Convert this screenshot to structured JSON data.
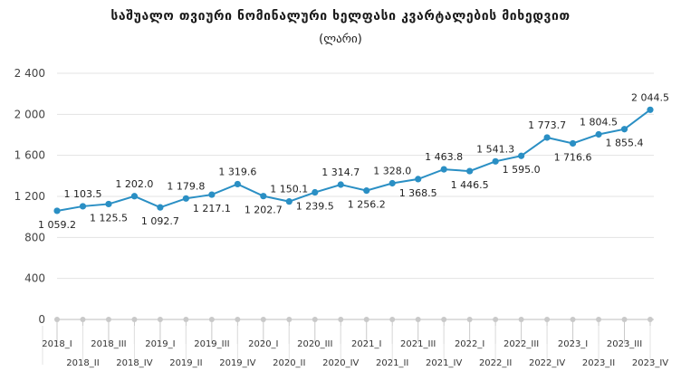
{
  "header": {
    "title": "საშუალო თვიური ნომინალური ხელფასი კვარტალების მიხედვით",
    "subtitle": "(ლარი)"
  },
  "chart_data": {
    "type": "line",
    "title": "საშუალო თვიური ნომინალური ხელფასი კვარტალების მიხედვით",
    "subtitle": "(ლარი)",
    "xlabel": "",
    "ylabel": "",
    "ylim": [
      0,
      2400
    ],
    "yticks": [
      0,
      400,
      800,
      1200,
      1600,
      2000,
      2400
    ],
    "ytick_labels": [
      "0",
      "400",
      "800",
      "1 200",
      "1 600",
      "2 000",
      "2 400"
    ],
    "grid": "horizontal",
    "legend": "none",
    "categories": [
      "2018_I",
      "2018_II",
      "2018_III",
      "2018_IV",
      "2019_I",
      "2019_II",
      "2019_III",
      "2019_IV",
      "2020_I",
      "2020_II",
      "2020_III",
      "2020_IV",
      "2021_I",
      "2021_II",
      "2021_III",
      "2021_IV",
      "2022_I",
      "2022_II",
      "2022_III",
      "2022_IV",
      "2023_I",
      "2023_II",
      "2023_III",
      "2023_IV"
    ],
    "series": [
      {
        "values": [
          1059.2,
          1103.5,
          1125.5,
          1202.0,
          1092.7,
          1179.8,
          1217.1,
          1319.6,
          1202.7,
          1150.1,
          1239.5,
          1314.7,
          1256.2,
          1328.0,
          1368.5,
          1463.8,
          1446.5,
          1541.3,
          1595.0,
          1773.7,
          1716.6,
          1804.5,
          1855.4,
          2044.5
        ],
        "labels": [
          "1 059.2",
          "1 103.5",
          "1 125.5",
          "1 202.0",
          "1 092.7",
          "1 179.8",
          "1 217.1",
          "1 319.6",
          "1 202.7",
          "1 150.1",
          "1 239.5",
          "1 314.7",
          "1 256.2",
          "1 328.0",
          "1 368.5",
          "1 463.8",
          "1 446.5",
          "1 541.3",
          "1 595.0",
          "1 773.7",
          "1 716.6",
          "1 804.5",
          "1 855.4",
          "2 044.5"
        ],
        "label_position": [
          "below",
          "above",
          "below",
          "above",
          "below",
          "above",
          "below",
          "above",
          "below",
          "above",
          "below",
          "above",
          "below",
          "above",
          "below",
          "above",
          "below",
          "above",
          "below",
          "above",
          "below",
          "above",
          "below",
          "above"
        ]
      }
    ]
  },
  "colors": {
    "series": "#2a8fc4",
    "grid": "#e3e3e3",
    "axis": "#bdbdbd",
    "axis_marker": "#c9c9c9"
  }
}
